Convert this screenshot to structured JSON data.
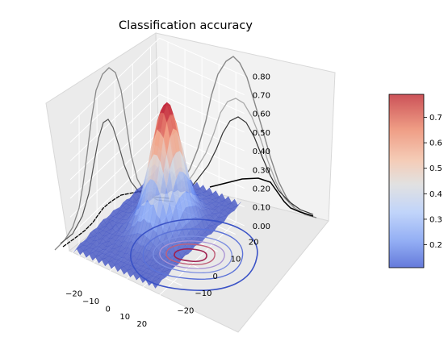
{
  "chart_data": {
    "type": "surface3d",
    "title": "Classification accuracy",
    "x_ticks": [
      "−20",
      "−10",
      "0",
      "10",
      "20"
    ],
    "x_tick_values": [
      -20,
      -10,
      0,
      10,
      20
    ],
    "y_ticks": [
      "−20",
      "−10",
      "0",
      "10",
      "20"
    ],
    "y_tick_values": [
      -20,
      -10,
      0,
      10,
      20
    ],
    "z_ticks": [
      "0.00",
      "0.10",
      "0.20",
      "0.30",
      "0.40",
      "0.50",
      "0.60",
      "0.70",
      "0.80"
    ],
    "z_tick_values": [
      0.0,
      0.1,
      0.2,
      0.3,
      0.4,
      0.5,
      0.6,
      0.7,
      0.8
    ],
    "xlim": [
      -25,
      25
    ],
    "ylim": [
      -25,
      25
    ],
    "zlim": [
      0,
      0.8
    ],
    "grid": true,
    "colormap": "coolwarm",
    "colorbar_ticks": [
      "0.2",
      "0.3",
      "0.4",
      "0.5",
      "0.6",
      "0.7"
    ],
    "colorbar_tick_values": [
      0.2,
      0.3,
      0.4,
      0.5,
      0.6,
      0.7
    ],
    "colorbar_range": [
      0.11,
      0.79
    ],
    "peak": {
      "x": 3,
      "y": 2,
      "z": 0.78
    },
    "baseline": 0.12,
    "colors": {
      "low": "#3b4cc0",
      "mid": "#dddddd",
      "high": "#b40426"
    }
  }
}
